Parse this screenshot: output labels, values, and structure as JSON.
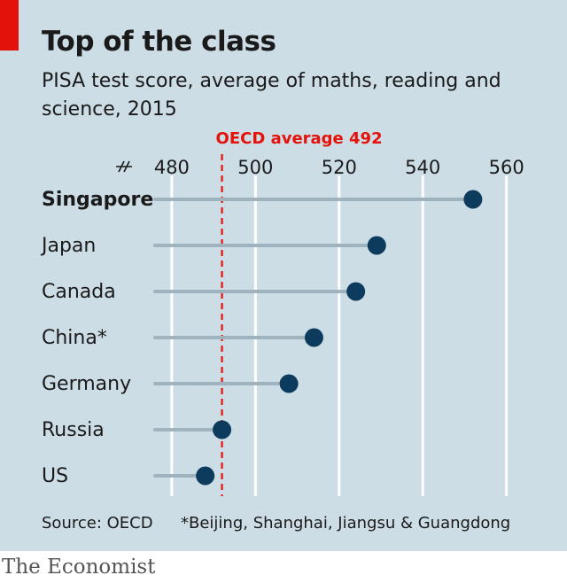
{
  "header": {
    "title": "Top of the class",
    "subtitle": "PISA test score, average of maths, reading and science, 2015"
  },
  "colors": {
    "accent": "#e3120b",
    "background": "#cddde6",
    "grid": "#ffffff",
    "stem": "#9fb3bf",
    "dot": "#0d3b5e",
    "reference": "#e3120b"
  },
  "chart_data": {
    "type": "dot",
    "categories": [
      "Singapore",
      "Japan",
      "Canada",
      "China*",
      "Germany",
      "Russia",
      "US"
    ],
    "values": [
      552,
      529,
      524,
      514,
      508,
      492,
      488
    ],
    "highlight": "Singapore",
    "xlim": [
      476,
      566
    ],
    "xticks": [
      480,
      500,
      520,
      540,
      560
    ],
    "axis_break": true,
    "axis_position": "top",
    "grid": true,
    "reference_line": {
      "value": 492,
      "label": "OECD average 492"
    }
  },
  "footer": {
    "source": "Source: OECD",
    "note": "*Beijing, Shanghai, Jiangsu & Guangdong"
  },
  "brand": "The Economist"
}
